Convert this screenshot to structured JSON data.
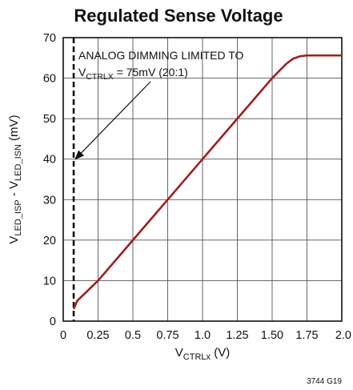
{
  "chart_data": {
    "type": "line",
    "title": "Regulated Sense Voltage",
    "xlabel": {
      "main": "V",
      "sub": "CTRLx",
      "rest": " (V)"
    },
    "ylabel": {
      "p1": "V",
      "s1": "LED_ISP",
      "p2": " - V",
      "s2": "LED_ISN",
      "p3": " (mV)"
    },
    "xlim": [
      0,
      2.0
    ],
    "ylim": [
      0,
      70
    ],
    "x_ticks": [
      "0",
      "0.25",
      "0.5",
      "0.75",
      "1.0",
      "1.25",
      "1.50",
      "1.75",
      "2.0"
    ],
    "y_ticks": [
      "0",
      "10",
      "20",
      "30",
      "40",
      "50",
      "60",
      "70"
    ],
    "grid": true,
    "series": [
      {
        "color": "#a11c22",
        "x": [
          0.075,
          0.1,
          0.25,
          0.5,
          0.75,
          1.0,
          1.25,
          1.5,
          1.6,
          1.65,
          1.7,
          1.75,
          1.8,
          2.0
        ],
        "y": [
          3.0,
          5.0,
          10.0,
          20.0,
          30.0,
          40.0,
          50.0,
          60.0,
          63.5,
          64.8,
          65.4,
          65.6,
          65.6,
          65.6
        ]
      }
    ],
    "vertical_line": {
      "x": 0.075,
      "style": "dashed"
    },
    "annotation": {
      "line1": "ANALOG DIMMING LIMITED TO",
      "line2_pre": "V",
      "line2_sub": "CTRLX",
      "line2_post": " = 75mV (20:1)",
      "arrow_to": [
        0.075,
        40
      ]
    }
  },
  "figure_code": "3744 G19"
}
